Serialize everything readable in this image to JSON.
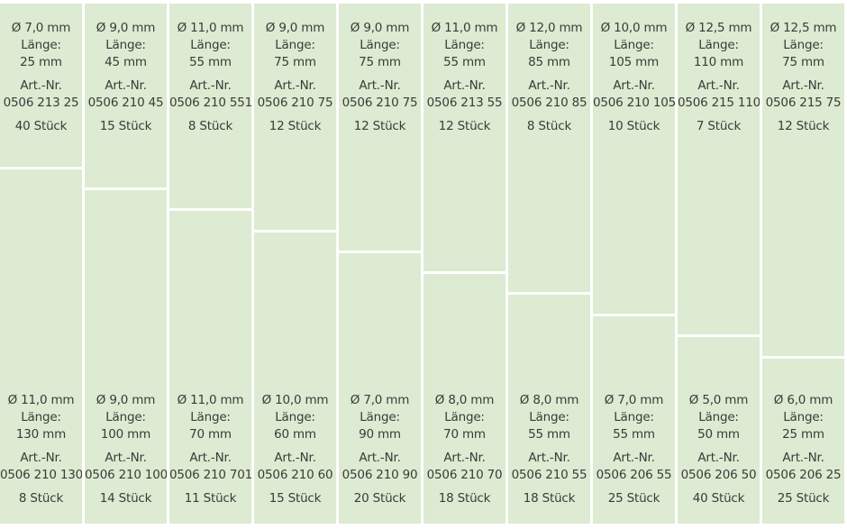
{
  "colors": {
    "cell_background": "#dcebd1",
    "separator": "#ffffff",
    "text": "#3b3b3b"
  },
  "length_label": "Länge:",
  "art_label": "Art.-Nr.",
  "columns": [
    {
      "top": {
        "diameter": "Ø 7,0 mm",
        "length": "25 mm",
        "art_nr": "0506 213 25",
        "qty": "40 Stück"
      },
      "bottom": {
        "diameter": "Ø 11,0 mm",
        "length": "130 mm",
        "art_nr": "0506 210 130",
        "qty": "8 Stück"
      }
    },
    {
      "top": {
        "diameter": "Ø 9,0 mm",
        "length": "45 mm",
        "art_nr": "0506 210 45",
        "qty": "15 Stück"
      },
      "bottom": {
        "diameter": "Ø 9,0 mm",
        "length": "100 mm",
        "art_nr": "0506 210 100",
        "qty": "14 Stück"
      }
    },
    {
      "top": {
        "diameter": "Ø 11,0 mm",
        "length": "55 mm",
        "art_nr": "0506 210 551",
        "qty": "8 Stück"
      },
      "bottom": {
        "diameter": "Ø 11,0 mm",
        "length": "70 mm",
        "art_nr": "0506 210 701",
        "qty": "11 Stück"
      }
    },
    {
      "top": {
        "diameter": "Ø 9,0 mm",
        "length": "75 mm",
        "art_nr": "0506 210 75",
        "qty": "12 Stück"
      },
      "bottom": {
        "diameter": "Ø 10,0 mm",
        "length": "60 mm",
        "art_nr": "0506 210 60",
        "qty": "15 Stück"
      }
    },
    {
      "top": {
        "diameter": "Ø 9,0 mm",
        "length": "75 mm",
        "art_nr": "0506 210 75",
        "qty": "12 Stück"
      },
      "bottom": {
        "diameter": "Ø 7,0 mm",
        "length": "90 mm",
        "art_nr": "0506 210 90",
        "qty": "20 Stück"
      }
    },
    {
      "top": {
        "diameter": "Ø 11,0 mm",
        "length": "55 mm",
        "art_nr": "0506 213 55",
        "qty": "12 Stück"
      },
      "bottom": {
        "diameter": "Ø 8,0 mm",
        "length": "70 mm",
        "art_nr": "0506 210 70",
        "qty": "18 Stück"
      }
    },
    {
      "top": {
        "diameter": "Ø 12,0 mm",
        "length": "85 mm",
        "art_nr": "0506 210 85",
        "qty": "8 Stück"
      },
      "bottom": {
        "diameter": "Ø 8,0 mm",
        "length": "55 mm",
        "art_nr": "0506 210 55",
        "qty": "18 Stück"
      }
    },
    {
      "top": {
        "diameter": "Ø 10,0 mm",
        "length": "105 mm",
        "art_nr": "0506 210 105",
        "qty": "10 Stück"
      },
      "bottom": {
        "diameter": "Ø 7,0 mm",
        "length": "55 mm",
        "art_nr": "0506 206 55",
        "qty": "25 Stück"
      }
    },
    {
      "top": {
        "diameter": "Ø 12,5 mm",
        "length": "110 mm",
        "art_nr": "0506 215 110",
        "qty": "7 Stück"
      },
      "bottom": {
        "diameter": "Ø 5,0 mm",
        "length": "50 mm",
        "art_nr": "0506 206 50",
        "qty": "40 Stück"
      }
    },
    {
      "top": {
        "diameter": "Ø 12,5 mm",
        "length": "75 mm",
        "art_nr": "0506 215 75",
        "qty": "12 Stück"
      },
      "bottom": {
        "diameter": "Ø 6,0 mm",
        "length": "25 mm",
        "art_nr": "0506 206 25",
        "qty": "25 Stück"
      }
    }
  ]
}
